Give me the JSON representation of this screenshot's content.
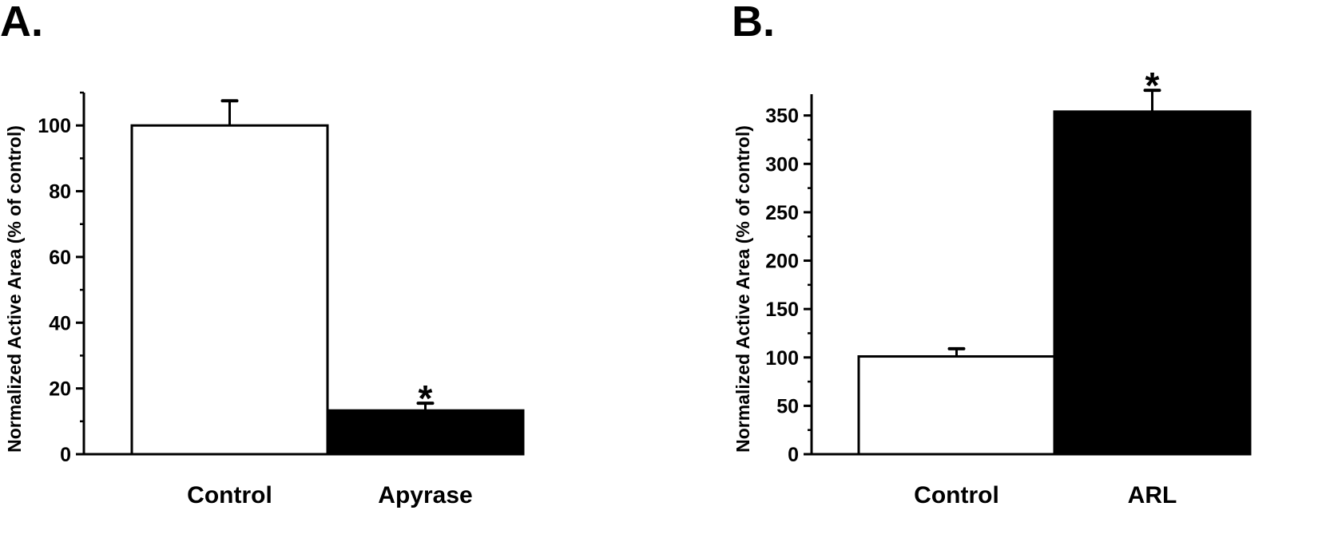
{
  "chart_data": [
    {
      "type": "bar",
      "panel_label": "A.",
      "title": "",
      "xlabel": "",
      "ylabel": "Normalized Active Area (% of control)",
      "categories": [
        "Control",
        "Apyrase"
      ],
      "values": [
        100,
        13.3
      ],
      "error": [
        7.5,
        2.2
      ],
      "significance": [
        "",
        "*"
      ],
      "fills": [
        "#ffffff",
        "#000000"
      ],
      "ylim": [
        0,
        110
      ],
      "yticks": [
        0,
        20,
        40,
        60,
        80,
        100
      ],
      "yminor_step": 10,
      "grid": false
    },
    {
      "type": "bar",
      "panel_label": "B.",
      "title": "",
      "xlabel": "",
      "ylabel": "Normalized Active Area (% of control)",
      "categories": [
        "Control",
        "ARL"
      ],
      "values": [
        101,
        354
      ],
      "error": [
        8,
        22
      ],
      "significance": [
        "",
        "*"
      ],
      "fills": [
        "#ffffff",
        "#000000"
      ],
      "ylim": [
        0,
        372
      ],
      "yticks": [
        0,
        50,
        100,
        150,
        200,
        250,
        300,
        350
      ],
      "yminor_step": 25,
      "grid": false
    }
  ]
}
